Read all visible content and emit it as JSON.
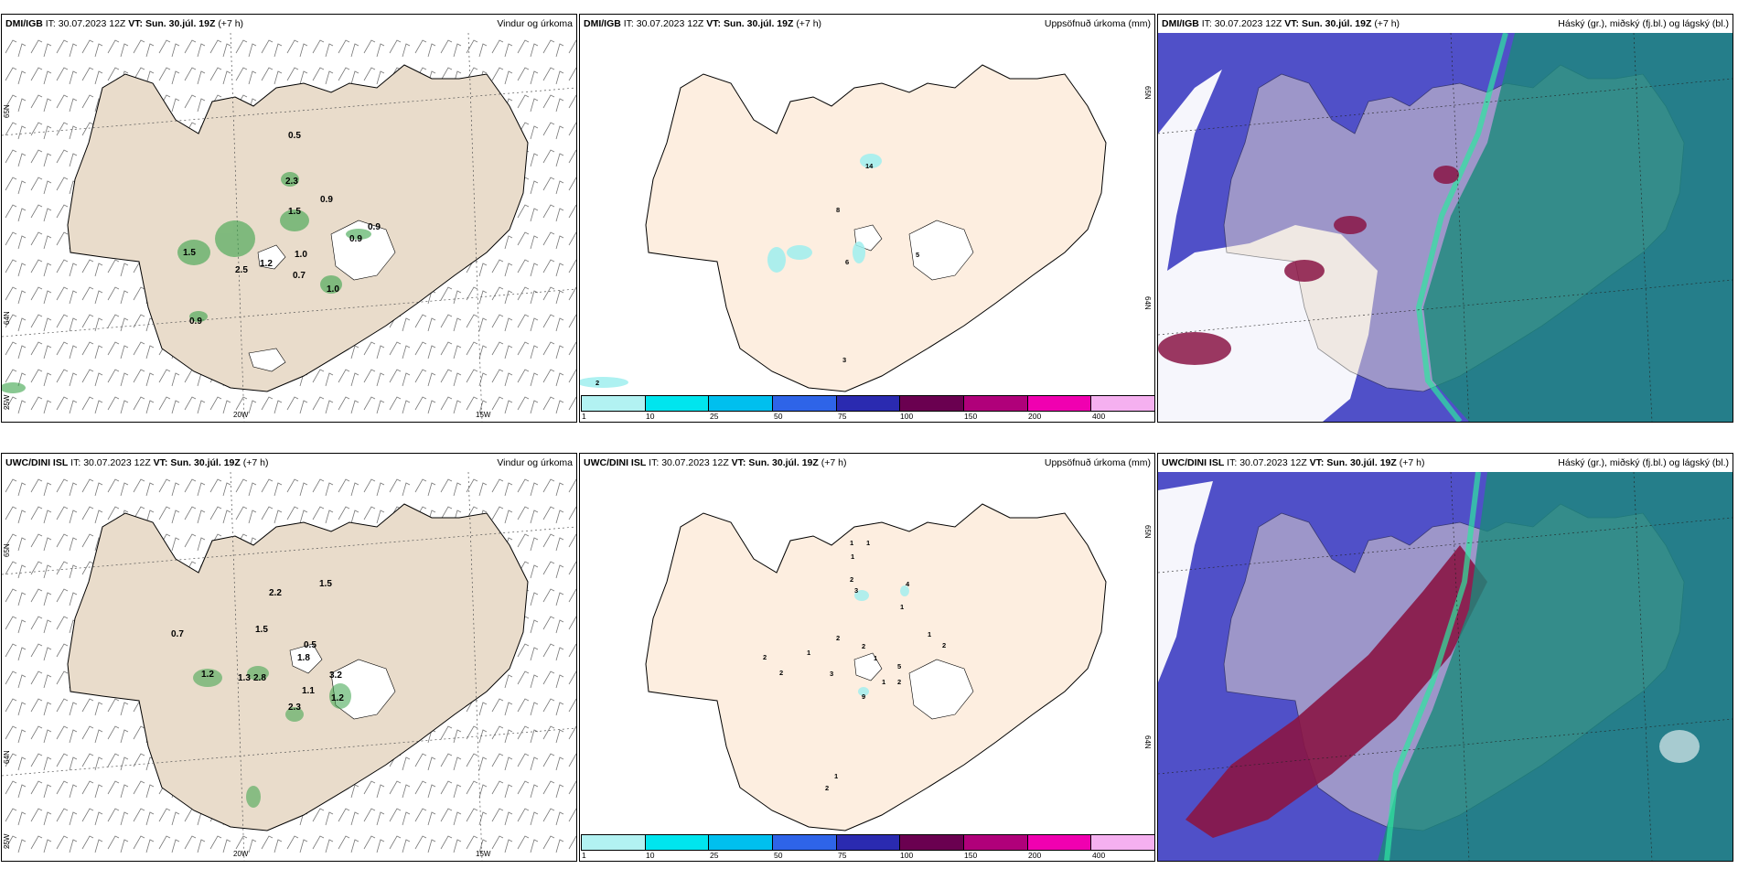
{
  "panels": [
    {
      "model": "DMI/IGB",
      "it_label": "IT:",
      "it": "30.07.2023 12Z",
      "vt_label": "VT:",
      "vt": "Sun. 30.júl. 19Z",
      "lead": "(+7 h)",
      "product": "Vindur og úrkoma",
      "axis": {
        "lat_top": "65N",
        "lat_bottom": "64N",
        "lon_left": "25W",
        "lon_mid": "20W",
        "lon_right": "15W"
      },
      "labels": [
        "0.5",
        "2.3",
        "0.9",
        "1.5",
        "0.9",
        "0.9",
        "1.5",
        "2.5",
        "1.2",
        "1.0",
        "0.7",
        "1.0",
        "0.9"
      ]
    },
    {
      "model": "DMI/IGB",
      "it_label": "IT:",
      "it": "30.07.2023 12Z",
      "vt_label": "VT:",
      "vt": "Sun. 30.júl. 19Z",
      "lead": "(+7 h)",
      "product": "Uppsöfnuð úrkoma (mm)",
      "axis": {
        "lat_top": "65N",
        "lat_bottom": "64N"
      },
      "labels": [
        "14",
        "8",
        "6",
        "5",
        "3",
        "2"
      ]
    },
    {
      "model": "DMI/IGB",
      "it_label": "IT:",
      "it": "30.07.2023 12Z",
      "vt_label": "VT:",
      "vt": "Sun. 30.júl. 19Z",
      "lead": "(+7 h)",
      "product": "Háský (gr.), miðský (fj.bl.) og lágský (bl.)"
    },
    {
      "model": "UWC/DINI ISL",
      "it_label": "IT:",
      "it": "30.07.2023 12Z",
      "vt_label": "VT:",
      "vt": "Sun. 30.júl. 19Z",
      "lead": "(+7 h)",
      "product": "Vindur og úrkoma",
      "axis": {
        "lat_top": "65N",
        "lat_bottom": "64N",
        "lon_left": "25W",
        "lon_mid": "20W",
        "lon_right": "15W"
      },
      "labels": [
        "2.2",
        "1.5",
        "0.7",
        "1.5",
        "0.5",
        "1.8",
        "1.2",
        "1.3",
        "2.8",
        "3.2",
        "1.1",
        "1.2",
        "2.3"
      ]
    },
    {
      "model": "UWC/DINI ISL",
      "it_label": "IT:",
      "it": "30.07.2023 12Z",
      "vt_label": "VT:",
      "vt": "Sun. 30.júl. 19Z",
      "lead": "(+7 h)",
      "product": "Uppsöfnuð úrkoma (mm)",
      "axis": {
        "lat_top": "65N",
        "lat_bottom": "64N"
      },
      "labels": [
        "1",
        "1",
        "1",
        "2",
        "3",
        "4",
        "1",
        "2",
        "1",
        "2",
        "2",
        "1",
        "2",
        "1",
        "2",
        "5",
        "3",
        "1",
        "9",
        "2",
        "2",
        "1"
      ]
    },
    {
      "model": "UWC/DINI ISL",
      "it_label": "IT:",
      "it": "30.07.2023 12Z",
      "vt_label": "VT:",
      "vt": "Sun. 30.júl. 19Z",
      "lead": "(+7 h)",
      "product": "Háský (gr.), miðský (fj.bl.) og lágský (bl.)"
    }
  ],
  "colorbar": {
    "ticks": [
      "1",
      "10",
      "25",
      "50",
      "75",
      "100",
      "150",
      "200",
      "400"
    ],
    "colors": [
      "#b2f2f2",
      "#00e5ee",
      "#00bfee",
      "#2e64e8",
      "#2a2ab0",
      "#6a0050",
      "#b0007a",
      "#f000b0",
      "#f5b0f0"
    ]
  },
  "colors": {
    "land": "#e9dccb",
    "land_light": "#fdeee0",
    "sea": "#ffffff",
    "cloud_low": "#5050c8",
    "cloud_mid": "#8a1545",
    "cloud_high": "#1a8a7a",
    "precip_green": "#3aa34a",
    "precip_cyan": "#9fefef"
  }
}
